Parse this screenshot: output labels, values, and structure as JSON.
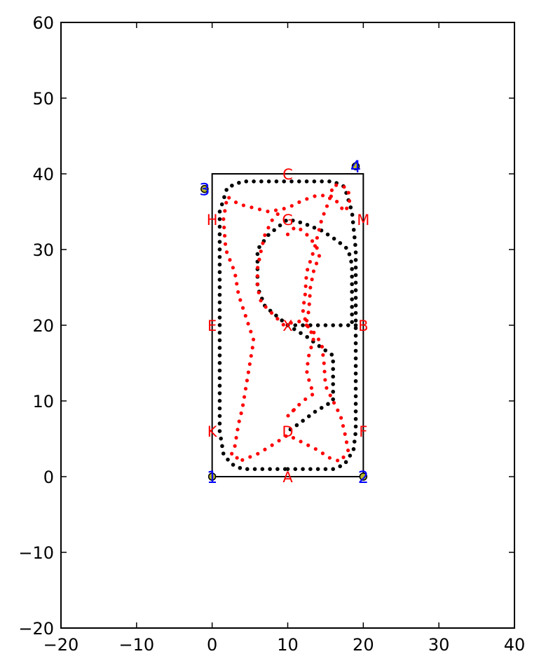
{
  "chart_data": {
    "type": "scatter",
    "title": "",
    "xlabel": "",
    "ylabel": "",
    "xlim": [
      -20,
      40
    ],
    "ylim": [
      -20,
      60
    ],
    "xticks": [
      -20,
      -10,
      0,
      10,
      20,
      30,
      40
    ],
    "yticks": [
      -20,
      -10,
      0,
      10,
      20,
      30,
      40,
      50,
      60
    ],
    "xtick_labels": [
      "−20",
      "−10",
      "0",
      "10",
      "20",
      "30",
      "40"
    ],
    "ytick_labels": [
      "−20",
      "−10",
      "0",
      "10",
      "20",
      "30",
      "40",
      "50",
      "60"
    ],
    "grid": false,
    "legend": "none",
    "colors": {
      "black_series": "#000000",
      "red_series": "#ff0000",
      "corner_marker": "#b5b52a",
      "corner_label": "#0000ff",
      "point_label": "#ff0000"
    },
    "boundary": [
      [
        0,
        0
      ],
      [
        20,
        0
      ],
      [
        20,
        40
      ],
      [
        0,
        40
      ],
      [
        0,
        0
      ]
    ],
    "corner_markers": [
      {
        "label": "1",
        "x": 0,
        "y": 0
      },
      {
        "label": "2",
        "x": 20,
        "y": 0
      },
      {
        "label": "3",
        "x": -1,
        "y": 38
      },
      {
        "label": "4",
        "x": 19,
        "y": 41
      }
    ],
    "point_labels": [
      {
        "label": "A",
        "x": 10,
        "y": 0
      },
      {
        "label": "B",
        "x": 20,
        "y": 20
      },
      {
        "label": "C",
        "x": 10,
        "y": 40
      },
      {
        "label": "D",
        "x": 10,
        "y": 6
      },
      {
        "label": "E",
        "x": 0,
        "y": 20
      },
      {
        "label": "F",
        "x": 20,
        "y": 6
      },
      {
        "label": "G",
        "x": 10,
        "y": 34
      },
      {
        "label": "H",
        "x": 0,
        "y": 34
      },
      {
        "label": "K",
        "x": 0,
        "y": 6
      },
      {
        "label": "M",
        "x": 20,
        "y": 34
      },
      {
        "label": "X",
        "x": 10,
        "y": 20
      }
    ],
    "series": [
      {
        "color": "#000000",
        "path_vertices": [
          [
            10,
            1
          ],
          [
            16,
            1
          ],
          [
            17.5,
            1.6
          ],
          [
            18.7,
            3.5
          ],
          [
            19,
            6
          ],
          [
            19,
            20
          ],
          [
            19,
            30
          ],
          [
            18.5,
            35
          ],
          [
            17.5,
            38.3
          ],
          [
            16,
            39
          ],
          [
            4,
            39
          ],
          [
            2,
            38.2
          ],
          [
            1,
            35
          ],
          [
            1,
            6
          ],
          [
            1.5,
            3
          ],
          [
            2.5,
            1.7
          ],
          [
            4,
            1
          ],
          [
            10,
            1
          ]
        ],
        "inner_path": [
          [
            19,
            20
          ],
          [
            13,
            20
          ],
          [
            10,
            20
          ],
          [
            7,
            22.5
          ],
          [
            6,
            25
          ],
          [
            6,
            30
          ],
          [
            7.5,
            32
          ],
          [
            10,
            34
          ],
          [
            12,
            33.5
          ],
          [
            14.5,
            32.5
          ],
          [
            16.5,
            31.2
          ],
          [
            18,
            30
          ],
          [
            18.5,
            28
          ],
          [
            18.5,
            20
          ]
        ],
        "lower_path": [
          [
            10,
            20
          ],
          [
            12.5,
            18.5
          ],
          [
            14.5,
            17
          ],
          [
            16,
            16
          ],
          [
            16,
            10
          ],
          [
            13.5,
            8.5
          ],
          [
            11.5,
            7
          ],
          [
            10,
            6
          ]
        ]
      },
      {
        "color": "#ff0000",
        "path_vertices": [
          [
            4,
            2.2
          ],
          [
            6,
            3
          ],
          [
            8,
            4.2
          ],
          [
            10,
            5.5
          ],
          [
            12,
            4.5
          ],
          [
            14,
            3.5
          ],
          [
            15.5,
            2.5
          ],
          [
            17,
            2
          ],
          [
            18,
            3.5
          ],
          [
            17.5,
            6
          ],
          [
            17,
            8
          ],
          [
            16,
            10
          ],
          [
            15,
            12
          ],
          [
            14.8,
            15
          ],
          [
            14.5,
            17.5
          ],
          [
            13.5,
            19
          ],
          [
            12.5,
            20
          ],
          [
            12,
            22
          ],
          [
            12.3,
            24
          ],
          [
            12.5,
            27
          ],
          [
            13.5,
            30
          ],
          [
            14.5,
            34
          ],
          [
            15.5,
            36.5
          ],
          [
            16,
            38.5
          ],
          [
            17,
            38.5
          ],
          [
            18,
            38
          ],
          [
            18.2,
            36
          ],
          [
            17.5,
            35
          ],
          [
            16,
            37
          ],
          [
            14,
            37.2
          ],
          [
            12,
            36.5
          ],
          [
            10,
            35.5
          ],
          [
            7.5,
            35
          ],
          [
            5.5,
            35.5
          ],
          [
            3.5,
            36
          ],
          [
            2,
            37
          ],
          [
            1.5,
            34
          ],
          [
            1.8,
            30
          ],
          [
            3,
            27
          ],
          [
            3.5,
            24
          ],
          [
            4.5,
            21
          ],
          [
            5.5,
            18
          ],
          [
            5,
            15
          ],
          [
            4.5,
            12
          ],
          [
            4,
            9
          ],
          [
            3.5,
            7
          ],
          [
            3,
            4
          ],
          [
            2.5,
            2.8
          ],
          [
            4,
            2.2
          ]
        ],
        "inner_path": [
          [
            10,
            32
          ],
          [
            11,
            33
          ],
          [
            12,
            32.5
          ],
          [
            13,
            31.5
          ],
          [
            14,
            30
          ],
          [
            14.2,
            29
          ],
          [
            13.5,
            27.5
          ],
          [
            13,
            25
          ],
          [
            12.8,
            22
          ],
          [
            12.5,
            20.5
          ],
          [
            11,
            20.5
          ],
          [
            9.5,
            20
          ],
          [
            8,
            21.5
          ],
          [
            6.5,
            23
          ],
          [
            6,
            25
          ],
          [
            6,
            27.5
          ],
          [
            6.5,
            30
          ],
          [
            7,
            32
          ],
          [
            8,
            34
          ],
          [
            9,
            35
          ]
        ],
        "lower_path": [
          [
            12.5,
            20
          ],
          [
            13.5,
            18.5
          ],
          [
            12.8,
            16
          ],
          [
            12.5,
            14
          ],
          [
            13,
            12
          ],
          [
            13.5,
            11
          ],
          [
            12,
            10
          ],
          [
            10.5,
            8.5
          ],
          [
            10,
            8
          ],
          [
            11,
            9
          ]
        ]
      }
    ]
  }
}
